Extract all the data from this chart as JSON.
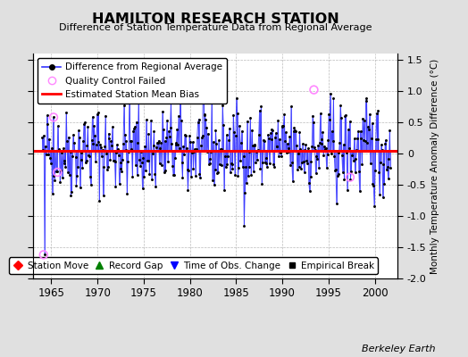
{
  "title": "HAMILTON RESEARCH STATION",
  "subtitle": "Difference of Station Temperature Data from Regional Average",
  "ylabel_right": "Monthly Temperature Anomaly Difference (°C)",
  "xlim": [
    1963.0,
    2002.5
  ],
  "ylim": [
    -2.0,
    1.6
  ],
  "yticks": [
    -2.0,
    -1.5,
    -1.0,
    -0.5,
    0.0,
    0.5,
    1.0,
    1.5
  ],
  "xticks": [
    1965,
    1970,
    1975,
    1980,
    1985,
    1990,
    1995,
    2000
  ],
  "mean_bias": 0.05,
  "background_color": "#e0e0e0",
  "plot_bg_color": "#ffffff",
  "line_color": "#3333ff",
  "mean_bias_color": "#ff0000",
  "qc_failed_color": "#ff88ff",
  "watermark": "Berkeley Earth",
  "seed": 42,
  "qc_failed_t": [
    1964.17,
    1965.25,
    1965.67,
    1993.42,
    1997.33
  ],
  "qc_failed_v": [
    -1.62,
    0.58,
    -0.3,
    1.02,
    -0.38
  ]
}
